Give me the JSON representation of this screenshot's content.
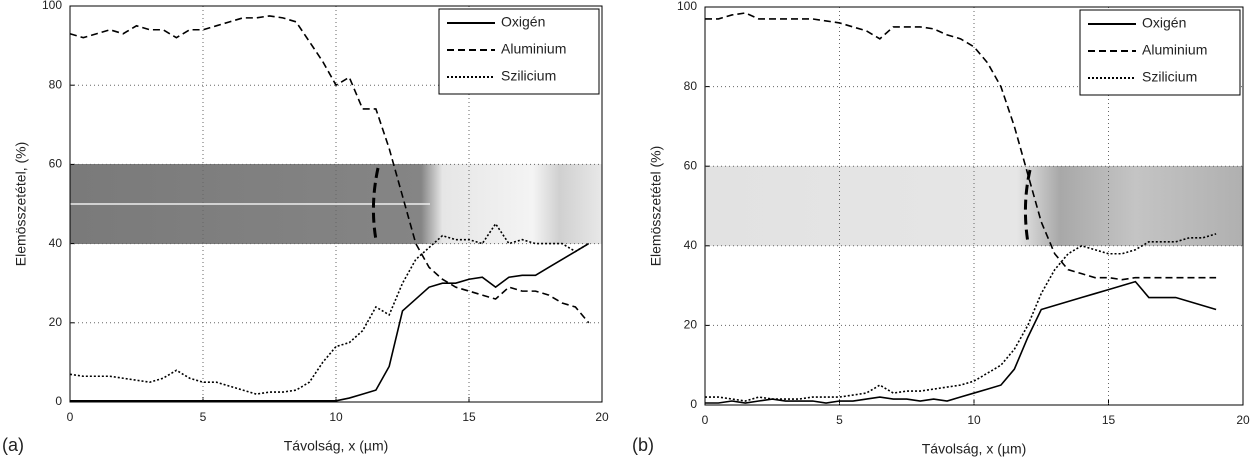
{
  "chart_data": [
    {
      "type": "line",
      "panel_label": "(a)",
      "x_label": "Távolság, x (µm)",
      "y_label": "Elemösszetétel, (%)",
      "xlim": [
        0,
        20
      ],
      "xticks": [
        0,
        5,
        10,
        15,
        20
      ],
      "ylim": [
        0,
        100
      ],
      "yticks": [
        0,
        20,
        40,
        60,
        80,
        100
      ],
      "grid": true,
      "legend": "upper right",
      "x": [
        0,
        0.5,
        1,
        1.5,
        2,
        2.5,
        3,
        3.5,
        4,
        4.5,
        5,
        5.5,
        6,
        6.5,
        7,
        7.5,
        8,
        8.5,
        9,
        9.5,
        10,
        10.5,
        11,
        11.5,
        12,
        12.5,
        13,
        13.5,
        14,
        14.5,
        15,
        15.5,
        16,
        16.5,
        17,
        17.5,
        18,
        18.5,
        19,
        19.5
      ],
      "series": [
        {
          "name": "Oxigén",
          "color": "#000000",
          "style": "solid",
          "values": [
            0.3,
            0.3,
            0.3,
            0.3,
            0.3,
            0.3,
            0.3,
            0.3,
            0.3,
            0.3,
            0.3,
            0.3,
            0.3,
            0.3,
            0.3,
            0.3,
            0.3,
            0.3,
            0.3,
            0.3,
            0.3,
            1,
            2,
            3,
            9,
            23,
            26,
            29,
            30,
            30,
            31,
            31.5,
            29,
            31.5,
            32,
            32,
            34,
            36,
            38,
            40
          ]
        },
        {
          "name": "Aluminium",
          "color": "#000000",
          "style": "dashed",
          "values": [
            93,
            92,
            93,
            94,
            93,
            95,
            94,
            94,
            92,
            94,
            94,
            95,
            96,
            97,
            97,
            97.5,
            97,
            96,
            91,
            86,
            80,
            82,
            74,
            74,
            64,
            52,
            40,
            34,
            31,
            29,
            28,
            27,
            26,
            29,
            28,
            28,
            27,
            25,
            24,
            20
          ]
        },
        {
          "name": "Szilicium",
          "color": "#000000",
          "style": "dotted",
          "values": [
            7,
            6.5,
            6.5,
            6.5,
            6,
            5.5,
            5,
            6,
            8,
            6,
            5,
            5,
            4,
            3,
            2,
            2.5,
            2.5,
            3,
            5,
            10,
            14,
            15,
            18,
            24,
            22,
            30,
            36,
            39,
            42,
            41,
            41,
            40,
            45,
            40,
            41,
            40,
            40,
            40,
            38,
            40
          ]
        }
      ]
    },
    {
      "type": "line",
      "panel_label": "(b)",
      "x_label": "Távolság, x (µm)",
      "y_label": "Elemösszetétel (%)",
      "xlim": [
        0,
        20
      ],
      "xticks": [
        0,
        5,
        10,
        15,
        20
      ],
      "ylim": [
        0,
        100
      ],
      "yticks": [
        0,
        20,
        40,
        60,
        80,
        100
      ],
      "grid": true,
      "legend": "upper right",
      "x": [
        0,
        0.5,
        1,
        1.5,
        2,
        2.5,
        3,
        3.5,
        4,
        4.5,
        5,
        5.5,
        6,
        6.5,
        7,
        7.5,
        8,
        8.5,
        9,
        9.5,
        10,
        10.5,
        11,
        11.5,
        12,
        12.5,
        13,
        13.5,
        14,
        14.5,
        15,
        15.5,
        16,
        16.5,
        17,
        17.5,
        18,
        18.5,
        19
      ],
      "series": [
        {
          "name": "Oxigén",
          "color": "#000000",
          "style": "solid",
          "values": [
            0.5,
            0.5,
            1,
            0.5,
            1,
            1.5,
            1,
            1,
            1,
            0.5,
            1,
            1,
            1.5,
            2,
            1.5,
            1.5,
            1,
            1.5,
            1,
            2,
            3,
            4,
            5,
            9,
            17,
            24,
            25,
            26,
            27,
            28,
            29,
            30,
            31,
            27,
            27,
            27,
            26,
            25,
            24
          ]
        },
        {
          "name": "Aluminium",
          "color": "#000000",
          "style": "dashed",
          "values": [
            97,
            97,
            98,
            98.5,
            97,
            97,
            97,
            97,
            97,
            96.5,
            96,
            95,
            94,
            92,
            95,
            95,
            95,
            94.5,
            93,
            92,
            90,
            86,
            80,
            70,
            58,
            46,
            38,
            34,
            33,
            32,
            32,
            31.5,
            32,
            32,
            32,
            32,
            32,
            32,
            32
          ]
        },
        {
          "name": "Szilicium",
          "color": "#000000",
          "style": "dotted",
          "values": [
            2,
            2,
            1.5,
            1,
            2,
            1.5,
            1.5,
            1.5,
            2,
            2,
            2,
            2.5,
            3,
            5,
            3,
            3.5,
            3.5,
            4,
            4.5,
            5,
            6,
            8,
            10,
            14,
            20,
            28,
            34,
            38,
            40,
            39,
            38,
            38,
            39,
            41,
            41,
            41,
            42,
            42,
            43
          ]
        }
      ]
    }
  ]
}
